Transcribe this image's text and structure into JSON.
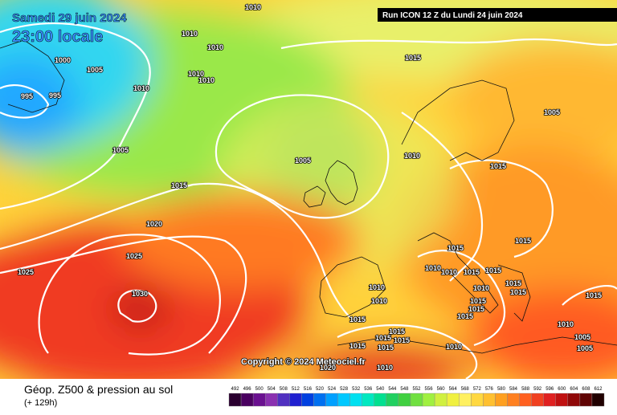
{
  "header": {
    "date": "Samedi 29 juin 2024",
    "time": "23:00 locale",
    "run": "Run ICON 12 Z du Lundi 24 juin 2024"
  },
  "isobar_labels": [
    "1010",
    "1010",
    "1010",
    "1000",
    "1005",
    "1010",
    "1010",
    "1015",
    "995",
    "995",
    "1010",
    "1005",
    "1005",
    "1010",
    "1015",
    "1005",
    "1015",
    "1020",
    "1025",
    "1025",
    "1030",
    "1015",
    "1015",
    "1010",
    "1010",
    "1015",
    "1015",
    "1010",
    "1015",
    "1015",
    "1010",
    "1010",
    "1015",
    "1015",
    "1015",
    "1015",
    "1015",
    "1015",
    "1015",
    "1015",
    "1015",
    "1015",
    "1010",
    "1010",
    "1005",
    "1005",
    "1010",
    "1020"
  ],
  "copyright": "Copyright © 2024 Meteociel.fr",
  "footer": {
    "title": "Géop. Z500 & pression au sol",
    "subtitle": "(+ 129h)"
  },
  "colorbar": {
    "ticks": [
      492,
      496,
      500,
      504,
      508,
      512,
      516,
      520,
      524,
      528,
      532,
      536,
      540,
      544,
      548,
      552,
      556,
      560,
      564,
      568,
      572,
      576,
      580,
      584,
      588,
      592,
      596,
      600,
      604,
      608,
      612
    ],
    "colors": [
      "#2a0030",
      "#4a0060",
      "#6a1090",
      "#8a30b0",
      "#5030c0",
      "#2020d0",
      "#0040e0",
      "#0070f0",
      "#00a0ff",
      "#00c8ff",
      "#00e0f0",
      "#00e8c0",
      "#00e090",
      "#20d060",
      "#40d040",
      "#70e040",
      "#a0f040",
      "#d0f040",
      "#f0f040",
      "#fff060",
      "#ffd840",
      "#ffc030",
      "#ffa020",
      "#ff8020",
      "#ff6020",
      "#f04020",
      "#e02020",
      "#c01010",
      "#900808",
      "#600404",
      "#200000"
    ]
  }
}
